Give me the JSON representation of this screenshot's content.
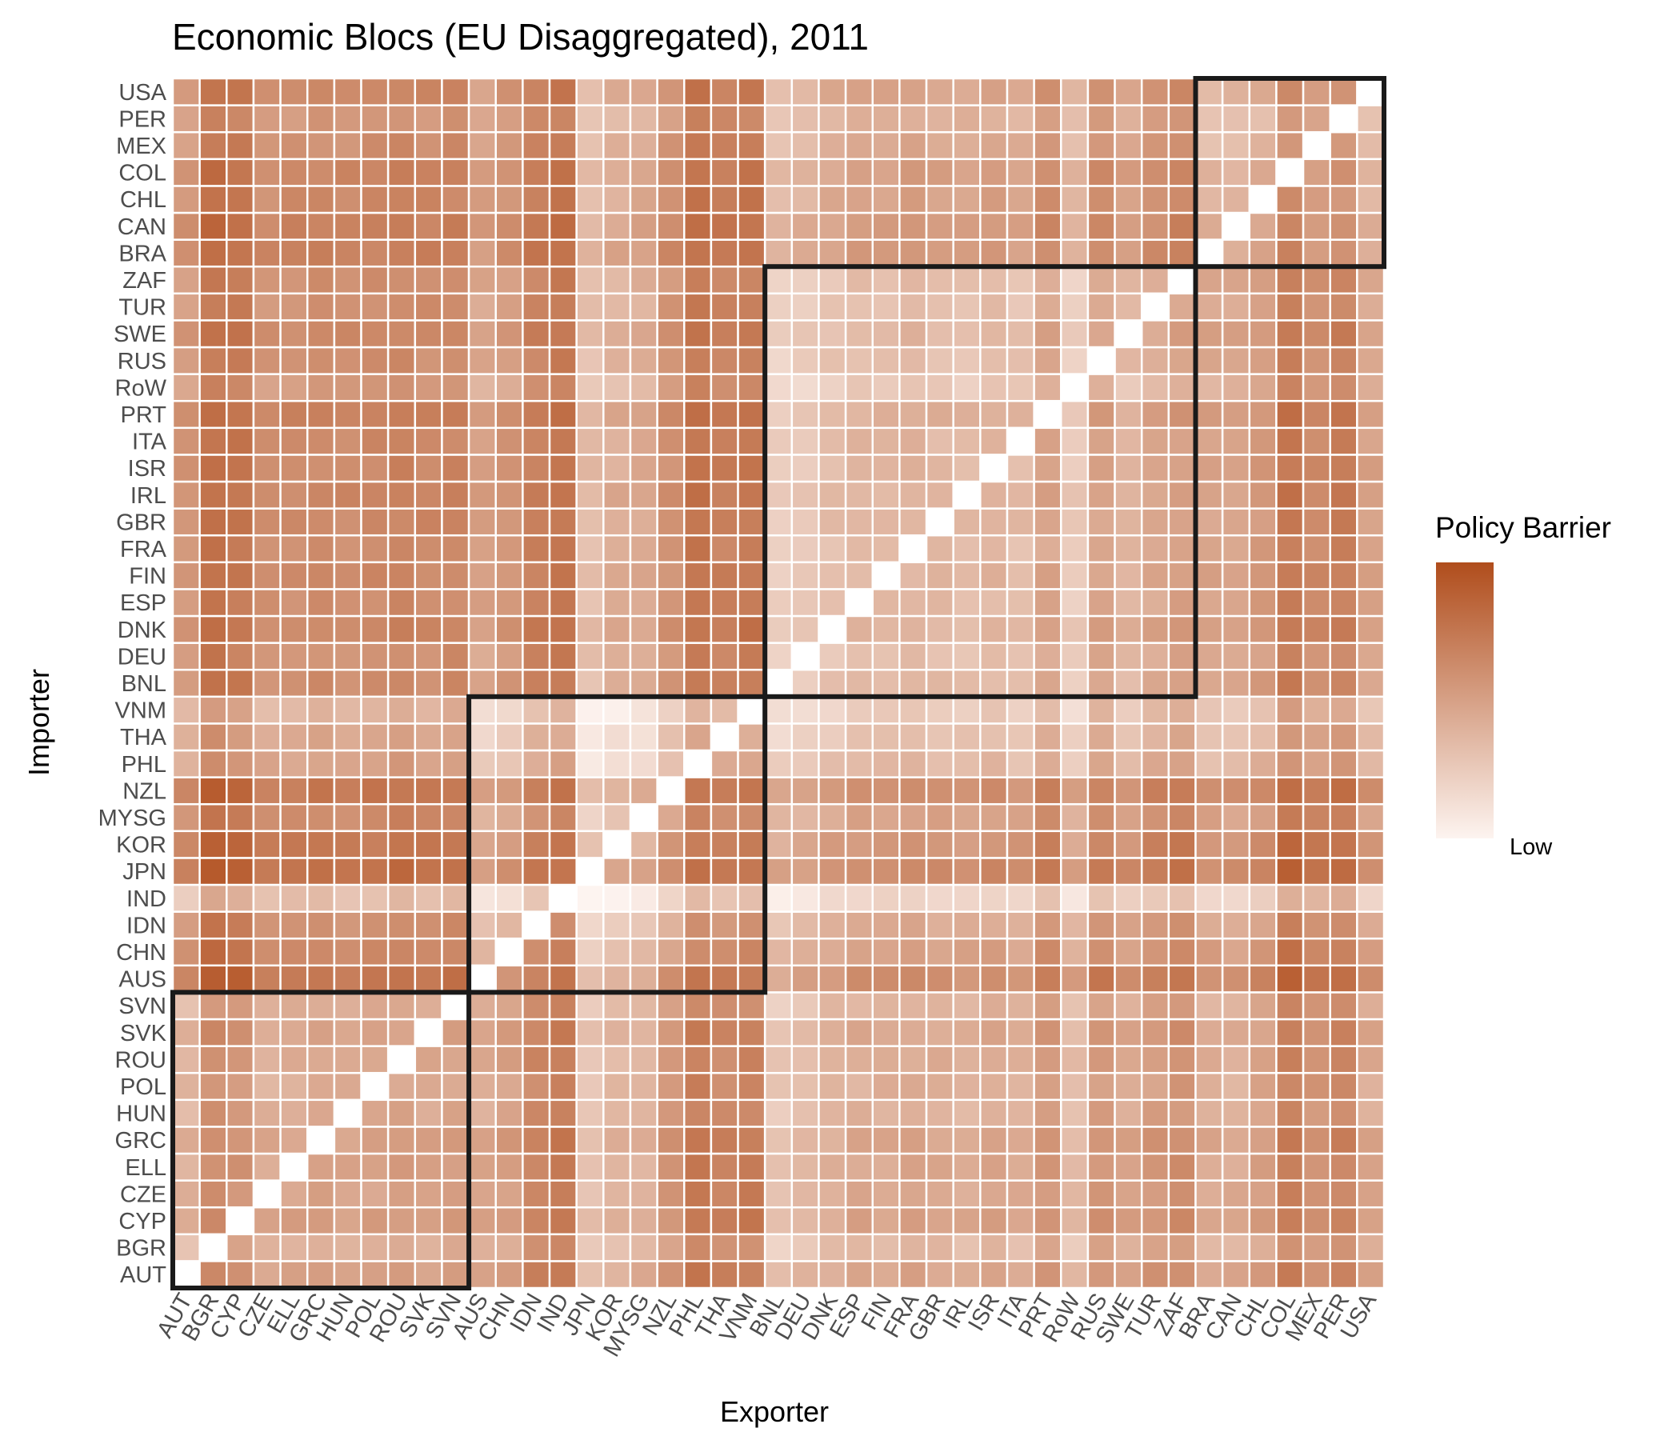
{
  "chart_data": {
    "type": "heatmap",
    "title": "Economic Blocs (EU Disaggregated), 2011",
    "xlabel": "Exporter",
    "ylabel": "Importer",
    "x_categories": [
      "AUT",
      "BGR",
      "CYP",
      "CZE",
      "ELL",
      "GRC",
      "HUN",
      "POL",
      "ROU",
      "SVK",
      "SVN",
      "AUS",
      "CHN",
      "IDN",
      "IND",
      "JPN",
      "KOR",
      "MYSG",
      "NZL",
      "PHL",
      "THA",
      "VNM",
      "BNL",
      "DEU",
      "DNK",
      "ESP",
      "FIN",
      "FRA",
      "GBR",
      "IRL",
      "ISR",
      "ITA",
      "PRT",
      "RoW",
      "RUS",
      "SWE",
      "TUR",
      "ZAF",
      "BRA",
      "CAN",
      "CHL",
      "COL",
      "MEX",
      "PER",
      "USA"
    ],
    "y_categories_bottom_to_top": [
      "AUT",
      "BGR",
      "CYP",
      "CZE",
      "ELL",
      "GRC",
      "HUN",
      "POL",
      "ROU",
      "SVK",
      "SVN",
      "AUS",
      "CHN",
      "IDN",
      "IND",
      "JPN",
      "KOR",
      "MYSG",
      "NZL",
      "PHL",
      "THA",
      "VNM",
      "BNL",
      "DEU",
      "DNK",
      "ESP",
      "FIN",
      "FRA",
      "GBR",
      "IRL",
      "ISR",
      "ITA",
      "PRT",
      "RoW",
      "RUS",
      "SWE",
      "TUR",
      "ZAF",
      "BRA",
      "CAN",
      "CHL",
      "COL",
      "MEX",
      "PER",
      "USA"
    ],
    "blocs": [
      {
        "start": "AUT",
        "end": "SVN"
      },
      {
        "start": "AUS",
        "end": "VNM"
      },
      {
        "start": "BNL",
        "end": "ZAF"
      },
      {
        "start": "BRA",
        "end": "USA"
      }
    ],
    "diagonal": "blank",
    "value_range": [
      0,
      1
    ],
    "color_low": "#fdf4f0",
    "color_high": "#b04d1c",
    "legend": {
      "title": "Policy Barrier",
      "label_low": "Low",
      "position": "right"
    },
    "exporter_effect": [
      0.52,
      0.74,
      0.7,
      0.56,
      0.58,
      0.6,
      0.58,
      0.6,
      0.63,
      0.6,
      0.62,
      0.46,
      0.52,
      0.66,
      0.72,
      0.3,
      0.38,
      0.4,
      0.55,
      0.72,
      0.66,
      0.7,
      0.3,
      0.34,
      0.4,
      0.44,
      0.44,
      0.46,
      0.44,
      0.42,
      0.46,
      0.42,
      0.56,
      0.34,
      0.56,
      0.46,
      0.54,
      0.6,
      0.44,
      0.44,
      0.5,
      0.7,
      0.6,
      0.66,
      0.46
    ],
    "importer_effect": [
      0.02,
      -0.08,
      0.04,
      0.0,
      0.0,
      0.02,
      -0.04,
      -0.04,
      -0.02,
      0.0,
      -0.06,
      0.16,
      0.06,
      0.0,
      -0.26,
      0.18,
      0.12,
      0.04,
      0.14,
      -0.1,
      -0.14,
      -0.2,
      0.02,
      0.0,
      0.06,
      0.02,
      0.04,
      0.02,
      0.04,
      0.06,
      0.04,
      0.04,
      0.08,
      -0.06,
      0.0,
      0.04,
      0.0,
      0.0,
      0.08,
      0.08,
      0.04,
      0.06,
      0.0,
      -0.04,
      0.04
    ],
    "within_bloc_offset": -0.12
  }
}
